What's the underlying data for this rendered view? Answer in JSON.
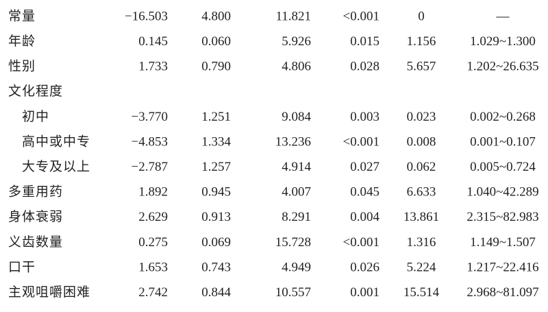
{
  "table": {
    "rows": [
      [
        "常量",
        "−16.503",
        "4.800",
        "11.821",
        "<0.001",
        "0",
        "—"
      ],
      [
        "年龄",
        "0.145",
        "0.060",
        "5.926",
        "0.015",
        "1.156",
        "1.029~1.300"
      ],
      [
        "性别",
        "1.733",
        "0.790",
        "4.806",
        "0.028",
        "5.657",
        "1.202~26.635"
      ],
      [
        "文化程度"
      ],
      [
        "初中",
        "−3.770",
        "1.251",
        "9.084",
        "0.003",
        "0.023",
        "0.002~0.268"
      ],
      [
        "高中或中专",
        "−4.853",
        "1.334",
        "13.236",
        "<0.001",
        "0.008",
        "0.001~0.107"
      ],
      [
        "大专及以上",
        "−2.787",
        "1.257",
        "4.914",
        "0.027",
        "0.062",
        "0.005~0.724"
      ],
      [
        "多重用药",
        "1.892",
        "0.945",
        "4.007",
        "0.045",
        "6.633",
        "1.040~42.289"
      ],
      [
        "身体衰弱",
        "2.629",
        "0.913",
        "8.291",
        "0.004",
        "13.861",
        "2.315~82.983"
      ],
      [
        "义齿数量",
        "0.275",
        "0.069",
        "15.728",
        "<0.001",
        "1.316",
        "1.149~1.507"
      ],
      [
        "口干",
        "1.653",
        "0.743",
        "4.949",
        "0.026",
        "5.224",
        "1.217~22.416"
      ],
      [
        "主观咀嚼困难",
        "2.742",
        "0.844",
        "10.557",
        "0.001",
        "15.514",
        "2.968~81.097"
      ]
    ]
  }
}
